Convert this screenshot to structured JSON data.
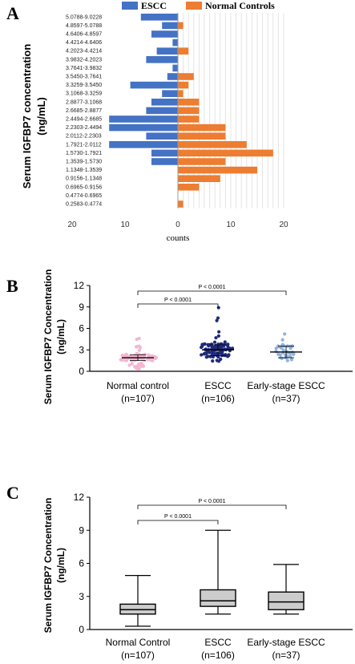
{
  "chart_data": [
    {
      "panel": "A",
      "type": "bar",
      "orientation": "horizontal-butterfly",
      "ylabel": "Serum IGFBP7 concentration\n(ng/mL)",
      "xlabel": "counts",
      "xticks_left": [
        "20",
        "10",
        "0"
      ],
      "xticks_right": [
        "10",
        "20"
      ],
      "categories": [
        "5.0788-9.0228",
        "4.8597-5.0788",
        "4.6406-4.8597",
        "4.4214-4.6406",
        "4.2023-4.4214",
        "3.9832-4.2023",
        "3.7641-3.9832",
        "3.5450-3.7641",
        "3.3259-3.5450",
        "3.1068-3.3259",
        "2.8877-3.1068",
        "2.6685-2.8877",
        "2.4494-2.6685",
        "2.2303-2.4494",
        "2.0112-2.2303",
        "1.7921-2.0112",
        "1.5730-1.7921",
        "1.3539-1.5730",
        "1.1348-1.3539",
        "0.9156-1.1348",
        "0.6965-0.9156",
        "0.4774-0.6965",
        "0.2583-0.4774"
      ],
      "series": [
        {
          "name": "ESCC",
          "color": "#4472c4",
          "values": [
            7,
            3,
            5,
            1,
            4,
            6,
            1,
            2,
            9,
            3,
            5,
            6,
            13,
            13,
            6,
            13,
            5,
            5,
            0,
            0,
            0,
            0,
            0
          ]
        },
        {
          "name": "Normal Controls",
          "color": "#ed7d31",
          "values": [
            0,
            1,
            0,
            0,
            2,
            0,
            0,
            3,
            2,
            1,
            4,
            4,
            4,
            9,
            9,
            13,
            18,
            9,
            15,
            8,
            4,
            0,
            1
          ]
        }
      ],
      "xlim": [
        -20,
        20
      ],
      "legend_position": "top"
    },
    {
      "panel": "B",
      "type": "scatter",
      "ylabel": "Serum IGFBP7 Concentration\n(ng/mL)",
      "ylim": [
        0,
        12
      ],
      "yticks": [
        "0",
        "3",
        "6",
        "9",
        "12"
      ],
      "groups": [
        {
          "label": "Normal control",
          "n": "(n=107)",
          "color": "#f4b6d2",
          "median": 1.9,
          "q1": 1.5,
          "q3": 2.3,
          "min": 0.3,
          "max": 4.9,
          "count": 107
        },
        {
          "label": "ESCC",
          "n": "(n=106)",
          "color": "#1f2a7a",
          "median": 3.0,
          "q1": 2.2,
          "q3": 3.7,
          "min": 1.4,
          "max": 9.0,
          "count": 106
        },
        {
          "label": "Early-stage ESCC",
          "n": "(n=37)",
          "color": "#8eb3e0",
          "median": 2.7,
          "q1": 1.9,
          "q3": 3.5,
          "min": 1.4,
          "max": 5.9,
          "count": 37
        }
      ],
      "annotations": [
        "P < 0.0001",
        "P < 0.0001"
      ]
    },
    {
      "panel": "C",
      "type": "box",
      "ylabel": "Serum IGFBP7 Concentration\n(ng/mL)",
      "ylim": [
        0,
        12
      ],
      "yticks": [
        "0",
        "3",
        "6",
        "9",
        "12"
      ],
      "groups": [
        {
          "label": "Normal Control",
          "n": "(n=107)",
          "min": 0.3,
          "q1": 1.4,
          "median": 1.8,
          "q3": 2.3,
          "max": 4.9
        },
        {
          "label": "ESCC",
          "n": "(n=106)",
          "min": 1.4,
          "q1": 2.1,
          "median": 2.6,
          "q3": 3.6,
          "max": 9.0
        },
        {
          "label": "Early-stage ESCC",
          "n": "(n=37)",
          "min": 1.4,
          "q1": 1.8,
          "median": 2.5,
          "q3": 3.4,
          "max": 5.9
        }
      ],
      "annotations": [
        "P < 0.0001",
        "P < 0.0001"
      ]
    }
  ],
  "panel_labels": {
    "a": "A",
    "b": "B",
    "c": "C"
  }
}
